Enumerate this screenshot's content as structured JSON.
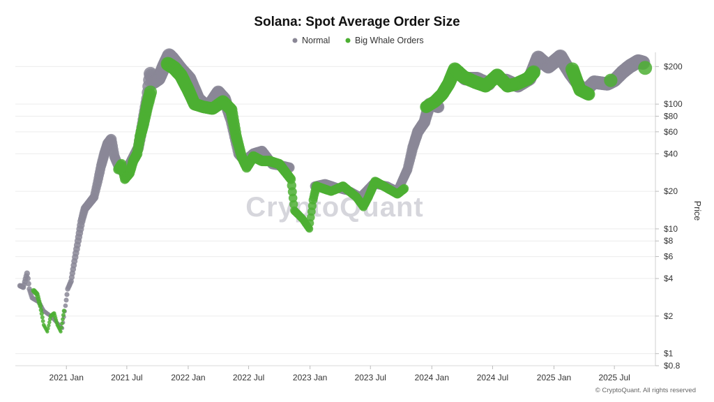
{
  "chart_data": {
    "type": "scatter",
    "title": "Solana: Spot Average Order Size",
    "ylabel": "Price",
    "xlabel": "",
    "y_scale": "log",
    "ylim": [
      0.8,
      260
    ],
    "xlim": [
      "2020-08-01",
      "2025-11-01"
    ],
    "grid": true,
    "legend_position": "top-center",
    "watermark": "CryptoQuant",
    "credit": "© CryptoQuant. All rights reserved",
    "x_ticks": [
      {
        "label": "2021 Jan",
        "date": "2021-01-01"
      },
      {
        "label": "2021 Jul",
        "date": "2021-07-01"
      },
      {
        "label": "2022 Jan",
        "date": "2022-01-01"
      },
      {
        "label": "2022 Jul",
        "date": "2022-07-01"
      },
      {
        "label": "2023 Jan",
        "date": "2023-01-01"
      },
      {
        "label": "2023 Jul",
        "date": "2023-07-01"
      },
      {
        "label": "2024 Jan",
        "date": "2024-01-01"
      },
      {
        "label": "2024 Jul",
        "date": "2024-07-01"
      },
      {
        "label": "2025 Jan",
        "date": "2025-01-01"
      },
      {
        "label": "2025 Jul",
        "date": "2025-07-01"
      }
    ],
    "y_ticks": [
      {
        "label": "$200",
        "value": 200
      },
      {
        "label": "$100",
        "value": 100
      },
      {
        "label": "$80",
        "value": 80
      },
      {
        "label": "$60",
        "value": 60
      },
      {
        "label": "$40",
        "value": 40
      },
      {
        "label": "$20",
        "value": 20
      },
      {
        "label": "$10",
        "value": 10
      },
      {
        "label": "$8",
        "value": 8
      },
      {
        "label": "$6",
        "value": 6
      },
      {
        "label": "$4",
        "value": 4
      },
      {
        "label": "$2",
        "value": 2
      },
      {
        "label": "$1",
        "value": 1
      },
      {
        "label": "$0.8",
        "value": 0.8
      }
    ],
    "series": [
      {
        "name": "Normal",
        "color": "#8a8796",
        "points": [
          [
            "2020-08-15",
            3.5
          ],
          [
            "2020-08-25",
            3.4
          ],
          [
            "2020-09-05",
            4.4
          ],
          [
            "2020-09-12",
            3.3
          ],
          [
            "2020-09-20",
            2.8
          ],
          [
            "2020-10-10",
            2.6
          ],
          [
            "2020-10-25",
            2.2
          ],
          [
            "2020-11-15",
            2.0
          ],
          [
            "2020-12-01",
            1.8
          ],
          [
            "2020-12-20",
            1.6
          ],
          [
            "2021-01-05",
            3.3
          ],
          [
            "2021-01-15",
            3.8
          ],
          [
            "2021-01-25",
            5.5
          ],
          [
            "2021-02-05",
            8.0
          ],
          [
            "2021-02-15",
            11.5
          ],
          [
            "2021-02-25",
            14.5
          ],
          [
            "2021-03-10",
            16.0
          ],
          [
            "2021-03-25",
            18.0
          ],
          [
            "2021-04-05",
            24.0
          ],
          [
            "2021-04-15",
            32.0
          ],
          [
            "2021-04-25",
            40.0
          ],
          [
            "2021-05-05",
            48.0
          ],
          [
            "2021-05-15",
            52.0
          ],
          [
            "2021-05-25",
            38.0
          ],
          [
            "2021-06-10",
            30.0
          ],
          [
            "2021-06-25",
            28.0
          ],
          [
            "2021-08-05",
            45.0
          ],
          [
            "2021-08-20",
            75.0
          ],
          [
            "2021-09-01",
            110.0
          ],
          [
            "2021-09-10",
            175.0
          ],
          [
            "2021-09-20",
            150.0
          ],
          [
            "2021-10-05",
            160.0
          ],
          [
            "2021-10-20",
            200.0
          ],
          [
            "2021-11-05",
            245.0
          ],
          [
            "2021-11-15",
            230.0
          ],
          [
            "2021-12-10",
            190.0
          ],
          [
            "2022-01-05",
            160.0
          ],
          [
            "2022-02-01",
            110.0
          ],
          [
            "2022-03-01",
            95.0
          ],
          [
            "2022-04-01",
            125.0
          ],
          [
            "2022-04-20",
            110.0
          ],
          [
            "2022-05-10",
            75.0
          ],
          [
            "2022-06-01",
            40.0
          ],
          [
            "2022-06-20",
            35.0
          ],
          [
            "2022-07-15",
            40.0
          ],
          [
            "2022-08-10",
            42.0
          ],
          [
            "2022-09-10",
            33.0
          ],
          [
            "2022-10-10",
            32.0
          ],
          [
            "2022-11-01",
            31.0
          ],
          [
            "2023-01-15",
            22.0
          ],
          [
            "2023-02-15",
            23.0
          ],
          [
            "2023-04-01",
            21.0
          ],
          [
            "2023-05-01",
            20.0
          ],
          [
            "2023-06-01",
            18.0
          ],
          [
            "2023-07-10",
            23.0
          ],
          [
            "2023-08-20",
            22.0
          ],
          [
            "2023-09-20",
            20.0
          ],
          [
            "2023-10-20",
            30.0
          ],
          [
            "2023-11-05",
            45.0
          ],
          [
            "2023-11-20",
            60.0
          ],
          [
            "2023-12-10",
            72.0
          ],
          [
            "2023-12-25",
            100.0
          ],
          [
            "2024-01-20",
            95.0
          ],
          [
            "2024-03-20",
            180.0
          ],
          [
            "2024-04-10",
            160.0
          ],
          [
            "2024-05-15",
            160.0
          ],
          [
            "2024-06-20",
            145.0
          ],
          [
            "2024-08-10",
            155.0
          ],
          [
            "2024-09-15",
            140.0
          ],
          [
            "2024-10-20",
            160.0
          ],
          [
            "2024-11-15",
            235.0
          ],
          [
            "2024-12-15",
            200.0
          ],
          [
            "2025-01-20",
            240.0
          ],
          [
            "2025-02-20",
            175.0
          ],
          [
            "2025-04-01",
            125.0
          ],
          [
            "2025-05-01",
            150.0
          ],
          [
            "2025-06-10",
            145.0
          ],
          [
            "2025-07-01",
            155.0
          ],
          [
            "2025-07-25",
            180.0
          ],
          [
            "2025-08-15",
            200.0
          ],
          [
            "2025-09-10",
            220.0
          ],
          [
            "2025-09-25",
            215.0
          ]
        ]
      },
      {
        "name": "Big Whale Orders",
        "color": "#4caf32",
        "points": [
          [
            "2020-09-25",
            3.2
          ],
          [
            "2020-10-05",
            3.0
          ],
          [
            "2020-10-15",
            2.4
          ],
          [
            "2020-10-25",
            1.7
          ],
          [
            "2020-11-05",
            1.5
          ],
          [
            "2020-11-15",
            2.0
          ],
          [
            "2020-11-25",
            2.1
          ],
          [
            "2020-12-05",
            1.7
          ],
          [
            "2020-12-15",
            1.5
          ],
          [
            "2020-12-25",
            2.2
          ],
          [
            "2021-06-05",
            30.0
          ],
          [
            "2021-06-15",
            33.0
          ],
          [
            "2021-06-25",
            25.0
          ],
          [
            "2021-07-10",
            28.0
          ],
          [
            "2021-07-20",
            35.0
          ],
          [
            "2021-08-01",
            40.0
          ],
          [
            "2021-08-10",
            55.0
          ],
          [
            "2021-08-20",
            70.0
          ],
          [
            "2021-08-30",
            95.0
          ],
          [
            "2021-09-10",
            125.0
          ],
          [
            "2021-11-01",
            210.0
          ],
          [
            "2021-11-20",
            195.0
          ],
          [
            "2021-12-10",
            170.0
          ],
          [
            "2022-01-01",
            130.0
          ],
          [
            "2022-01-20",
            100.0
          ],
          [
            "2022-02-15",
            95.0
          ],
          [
            "2022-03-15",
            92.0
          ],
          [
            "2022-04-15",
            105.0
          ],
          [
            "2022-05-10",
            90.0
          ],
          [
            "2022-05-25",
            55.0
          ],
          [
            "2022-06-10",
            38.0
          ],
          [
            "2022-06-25",
            31.0
          ],
          [
            "2022-07-15",
            38.0
          ],
          [
            "2022-08-10",
            35.0
          ],
          [
            "2022-09-01",
            35.0
          ],
          [
            "2022-10-01",
            33.0
          ],
          [
            "2022-11-05",
            25.0
          ],
          [
            "2022-11-15",
            14.0
          ],
          [
            "2022-12-10",
            12.0
          ],
          [
            "2022-12-30",
            10.0
          ],
          [
            "2023-01-10",
            17.0
          ],
          [
            "2023-01-20",
            22.0
          ],
          [
            "2023-03-05",
            20.0
          ],
          [
            "2023-04-10",
            22.0
          ],
          [
            "2023-05-20",
            18.0
          ],
          [
            "2023-06-10",
            15.0
          ],
          [
            "2023-06-25",
            18.0
          ],
          [
            "2023-07-15",
            24.0
          ],
          [
            "2023-08-10",
            22.0
          ],
          [
            "2023-09-20",
            19.0
          ],
          [
            "2023-10-10",
            21.0
          ],
          [
            "2023-12-15",
            95.0
          ],
          [
            "2024-01-10",
            105.0
          ],
          [
            "2024-02-01",
            120.0
          ],
          [
            "2024-02-20",
            145.0
          ],
          [
            "2024-03-10",
            190.0
          ],
          [
            "2024-04-05",
            165.0
          ],
          [
            "2024-05-10",
            150.0
          ],
          [
            "2024-06-10",
            140.0
          ],
          [
            "2024-07-15",
            170.0
          ],
          [
            "2024-08-15",
            140.0
          ],
          [
            "2024-09-10",
            145.0
          ],
          [
            "2024-10-15",
            160.0
          ],
          [
            "2024-11-01",
            180.0
          ],
          [
            "2025-02-25",
            190.0
          ],
          [
            "2025-03-20",
            130.0
          ],
          [
            "2025-04-15",
            120.0
          ],
          [
            "2025-06-20",
            155.0
          ],
          [
            "2025-10-01",
            195.0
          ]
        ]
      }
    ]
  }
}
